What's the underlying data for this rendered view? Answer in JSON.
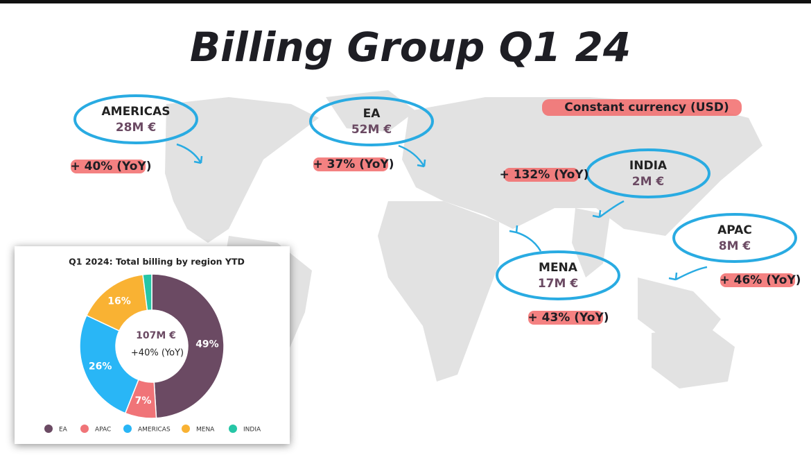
{
  "title": "Billing Group Q1 24",
  "note": "Constant currency (USD)",
  "regions": [
    {
      "name": "AMERICAS",
      "amount": "28M €",
      "growth": "+ 40% (YoY)"
    },
    {
      "name": "EA",
      "amount": "52M €",
      "growth": "+ 37% (YoY)"
    },
    {
      "name": "INDIA",
      "amount": "2M €",
      "growth": "+ 132% (YoY)"
    },
    {
      "name": "APAC",
      "amount": "8M €",
      "growth": "+ 46% (YoY)"
    },
    {
      "name": "MENA",
      "amount": "17M €",
      "growth": "+ 43% (YoY)"
    }
  ],
  "chart_data": {
    "type": "donut",
    "title": "Q1 2024: Total billing by region YTD",
    "categories": [
      "EA",
      "APAC",
      "AMERICAS",
      "MENA",
      "INDIA"
    ],
    "values": [
      49,
      7,
      26,
      16,
      2
    ],
    "value_labels": [
      "49%",
      "7%",
      "26%",
      "16%",
      null
    ],
    "colors": [
      "#6b4a63",
      "#f07478",
      "#29b6f6",
      "#f9b233",
      "#26c6a6"
    ],
    "center_text": [
      "107M €",
      "+40% (YoY)"
    ],
    "legend": "bottom"
  }
}
